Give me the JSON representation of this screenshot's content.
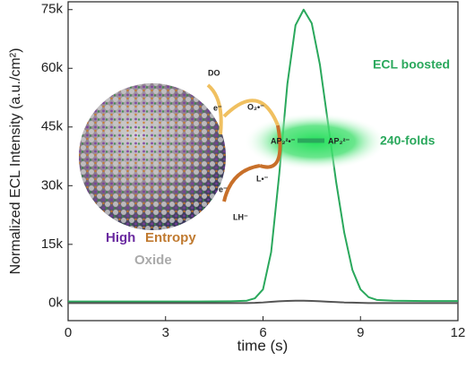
{
  "chart_data": {
    "type": "line",
    "x_label": "time (s)",
    "y_label": "Normalized ECL Intensity (a.u./cm²)",
    "x": [
      0,
      1,
      2,
      3,
      4,
      5,
      5.5,
      5.75,
      6,
      6.25,
      6.5,
      6.75,
      7,
      7.25,
      7.5,
      7.75,
      8,
      8.25,
      8.5,
      8.75,
      9,
      9.25,
      9.5,
      10,
      11,
      12
    ],
    "series": [
      {
        "color": "#2aa85c",
        "values": [
          400,
          400,
          400,
          400,
          400,
          450,
          600,
          1200,
          3500,
          13000,
          33000,
          56000,
          71000,
          75000,
          71500,
          61000,
          46000,
          31000,
          18000,
          8500,
          3500,
          1500,
          800,
          600,
          500,
          500
        ]
      },
      {
        "color": "#555555",
        "values": [
          0,
          0,
          0,
          0,
          0,
          0,
          0,
          50,
          150,
          300,
          450,
          550,
          600,
          600,
          550,
          450,
          350,
          250,
          150,
          100,
          50,
          0,
          0,
          0,
          0,
          0
        ]
      }
    ],
    "xlim": [
      0,
      12
    ],
    "xticks": [
      0,
      3,
      6,
      9,
      12
    ],
    "ylim": [
      -4500,
      77000
    ],
    "yticks": [
      {
        "value": 0,
        "label": "0k"
      },
      {
        "value": 15000,
        "label": "15k"
      },
      {
        "value": 30000,
        "label": "30k"
      },
      {
        "value": 45000,
        "label": "45k"
      },
      {
        "value": 60000,
        "label": "60k"
      },
      {
        "value": 75000,
        "label": "75k"
      }
    ],
    "annotations": [
      "ECL boosted",
      "240-folds",
      "DO",
      "e⁻",
      "O₂•⁻",
      "AP₂²•⁻",
      "AP₂²⁻",
      "e⁻",
      "L•⁻",
      "LH⁻",
      "High",
      "Entropy",
      "Oxide"
    ]
  }
}
